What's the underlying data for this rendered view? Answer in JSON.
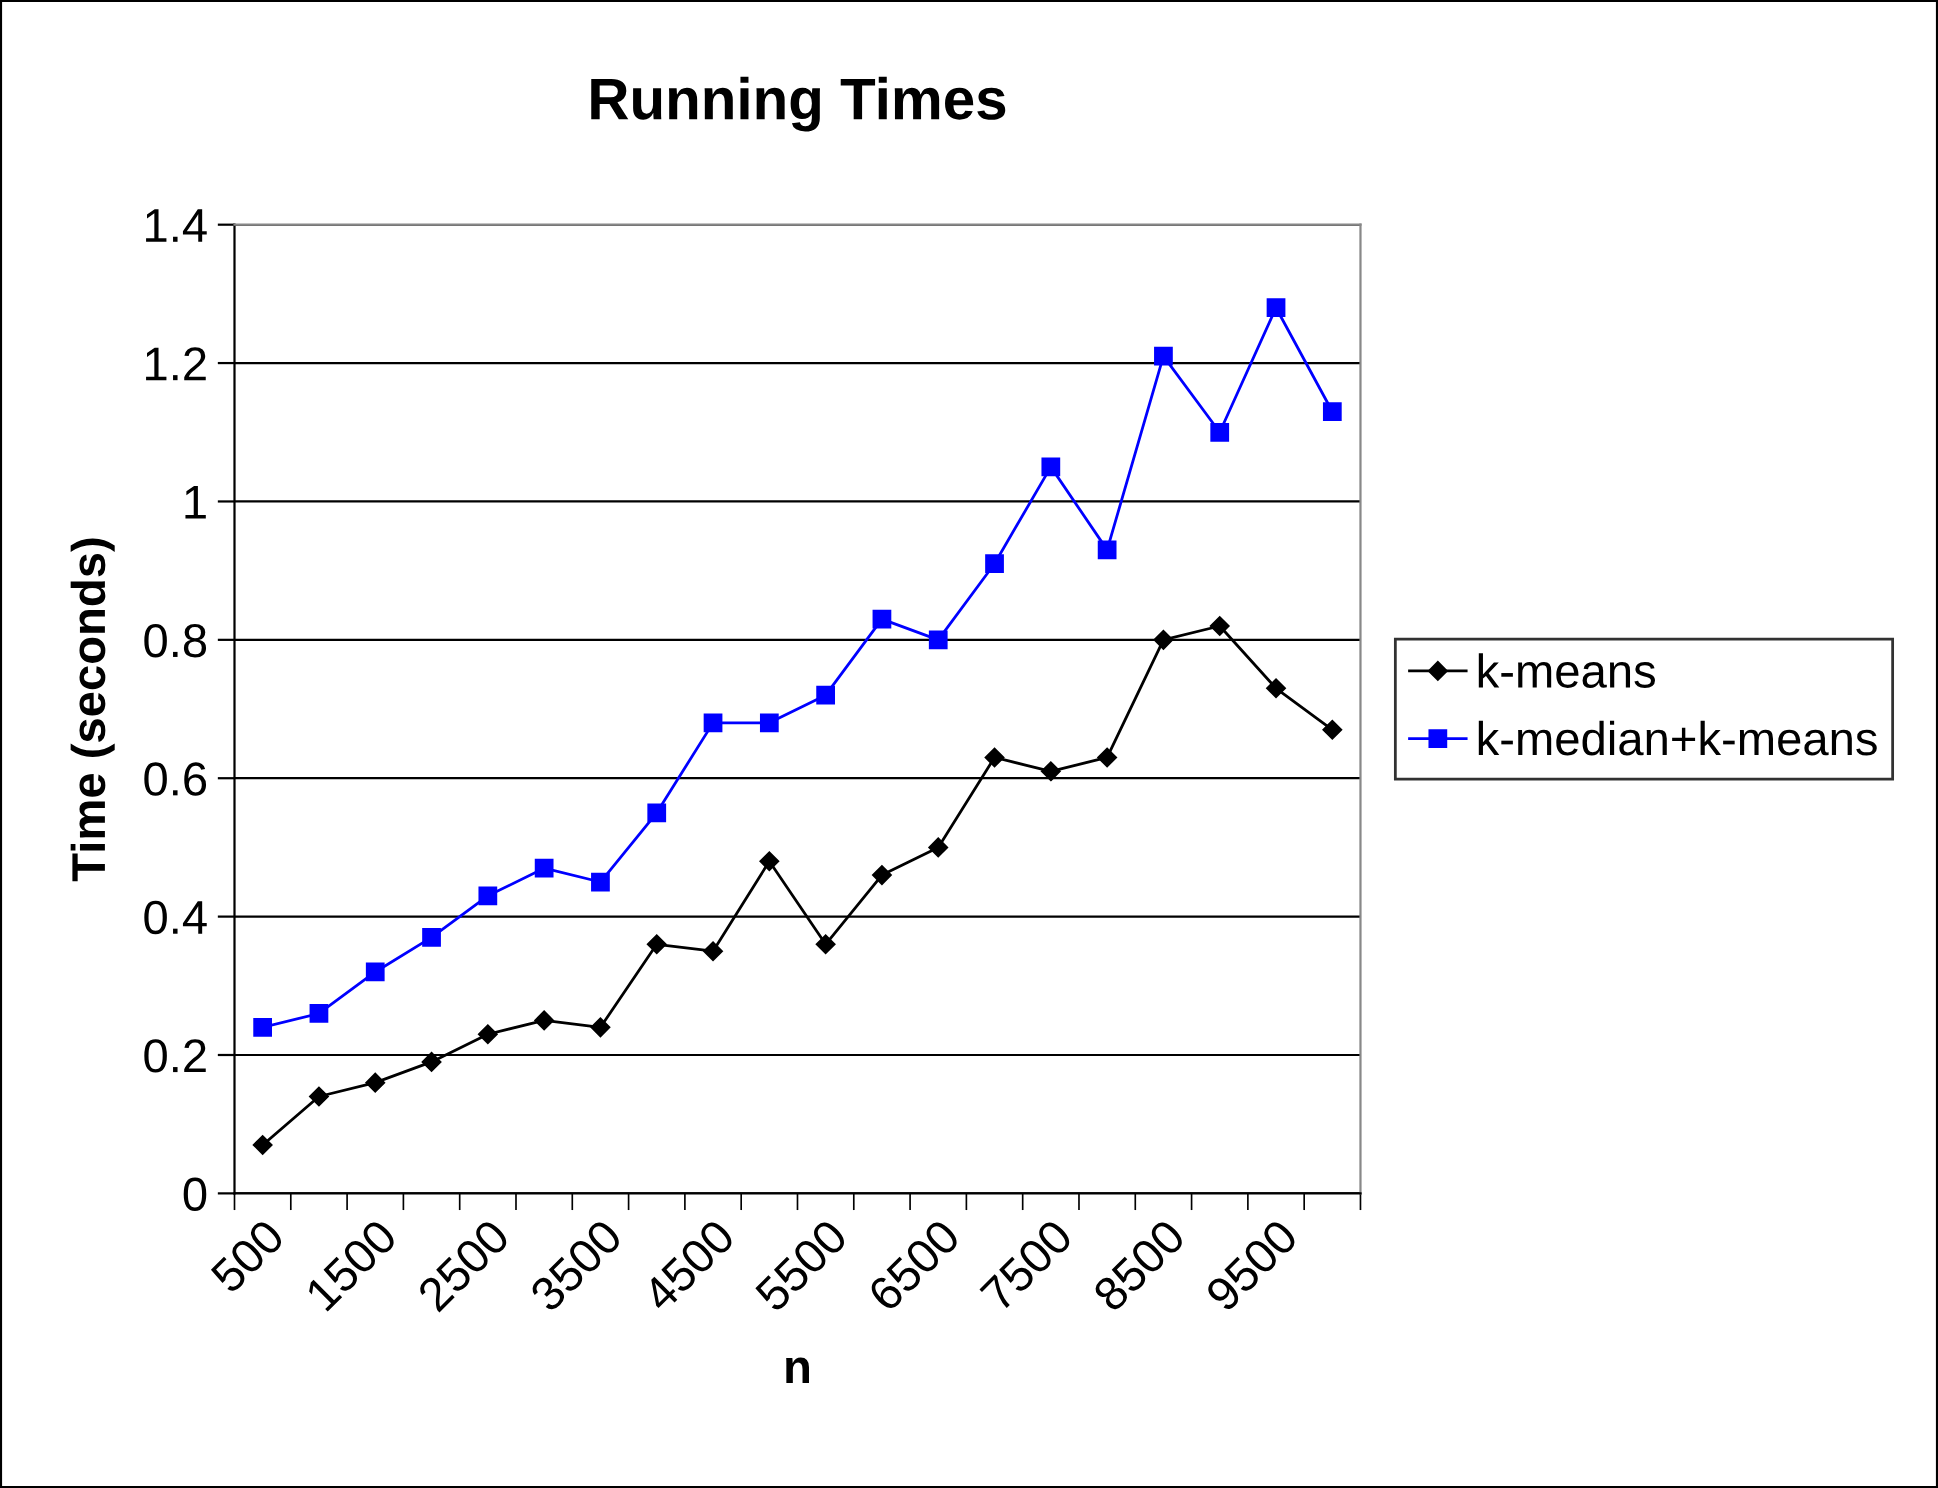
{
  "chart_data": {
    "type": "line",
    "title": "Running Times",
    "xlabel": "n",
    "ylabel": "Time (seconds)",
    "categories": [
      "500",
      null,
      "1500",
      null,
      "2500",
      null,
      "3500",
      null,
      "4500",
      null,
      "5500",
      null,
      "6500",
      null,
      "7500",
      null,
      "8500",
      null,
      "9500",
      null
    ],
    "series": [
      {
        "name": "k-means",
        "color": "#000000",
        "marker": "diamond",
        "values": [
          0.07,
          0.14,
          0.16,
          0.19,
          0.23,
          0.25,
          0.24,
          0.36,
          0.35,
          0.48,
          0.36,
          0.46,
          0.5,
          0.63,
          0.61,
          0.63,
          0.8,
          0.82,
          0.73,
          0.67
        ]
      },
      {
        "name": "k-median+k-means",
        "color": "#0000ff",
        "marker": "square",
        "values": [
          0.24,
          0.26,
          0.32,
          0.37,
          0.43,
          0.47,
          0.45,
          0.55,
          0.68,
          0.68,
          0.72,
          0.83,
          0.8,
          0.91,
          1.05,
          0.93,
          1.21,
          1.1,
          1.28,
          1.13
        ]
      }
    ],
    "ylim": [
      0,
      1.4
    ],
    "yticks": [
      0,
      0.2,
      0.4,
      0.6,
      0.8,
      1,
      1.2,
      1.4
    ],
    "grid": "y",
    "legend": "right",
    "line_style": "solid"
  }
}
